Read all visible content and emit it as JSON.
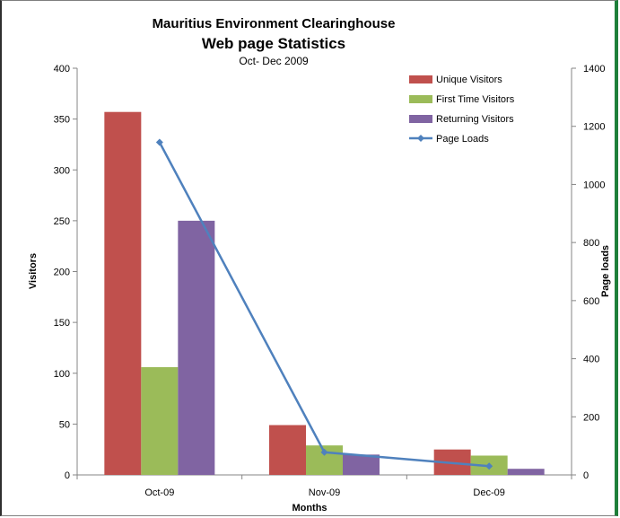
{
  "chart_data": {
    "type": "bar",
    "title": "Mauritius Environment Clearinghouse",
    "subtitle": "Web page Statistics",
    "subtitle2": "Oct- Dec 2009",
    "xlabel": "Months",
    "ylabel": "Visitors",
    "y2label": "Page loads",
    "categories": [
      "Oct-09",
      "Nov-09",
      "Dec-09"
    ],
    "ylim": [
      0,
      400
    ],
    "yticks": [
      "0",
      "50",
      "100",
      "150",
      "200",
      "250",
      "300",
      "350",
      "400"
    ],
    "y2lim": [
      0,
      1400
    ],
    "y2ticks": [
      "0",
      "200",
      "400",
      "600",
      "800",
      "1000",
      "1200",
      "1400"
    ],
    "grid": false,
    "legend_position": "top-right",
    "series": [
      {
        "name": "Unique Visitors",
        "kind": "bar",
        "axis": "left",
        "color": "#c0504d",
        "values": [
          357,
          49,
          25
        ]
      },
      {
        "name": "First Time Visitors",
        "kind": "bar",
        "axis": "left",
        "color": "#9bbb59",
        "values": [
          106,
          29,
          19
        ]
      },
      {
        "name": "Returning Visitors",
        "kind": "bar",
        "axis": "left",
        "color": "#8064a2",
        "values": [
          250,
          20,
          6
        ]
      },
      {
        "name": "Page Loads",
        "kind": "line",
        "axis": "right",
        "color": "#4f81bd",
        "values": [
          1145,
          78,
          30
        ]
      }
    ]
  }
}
